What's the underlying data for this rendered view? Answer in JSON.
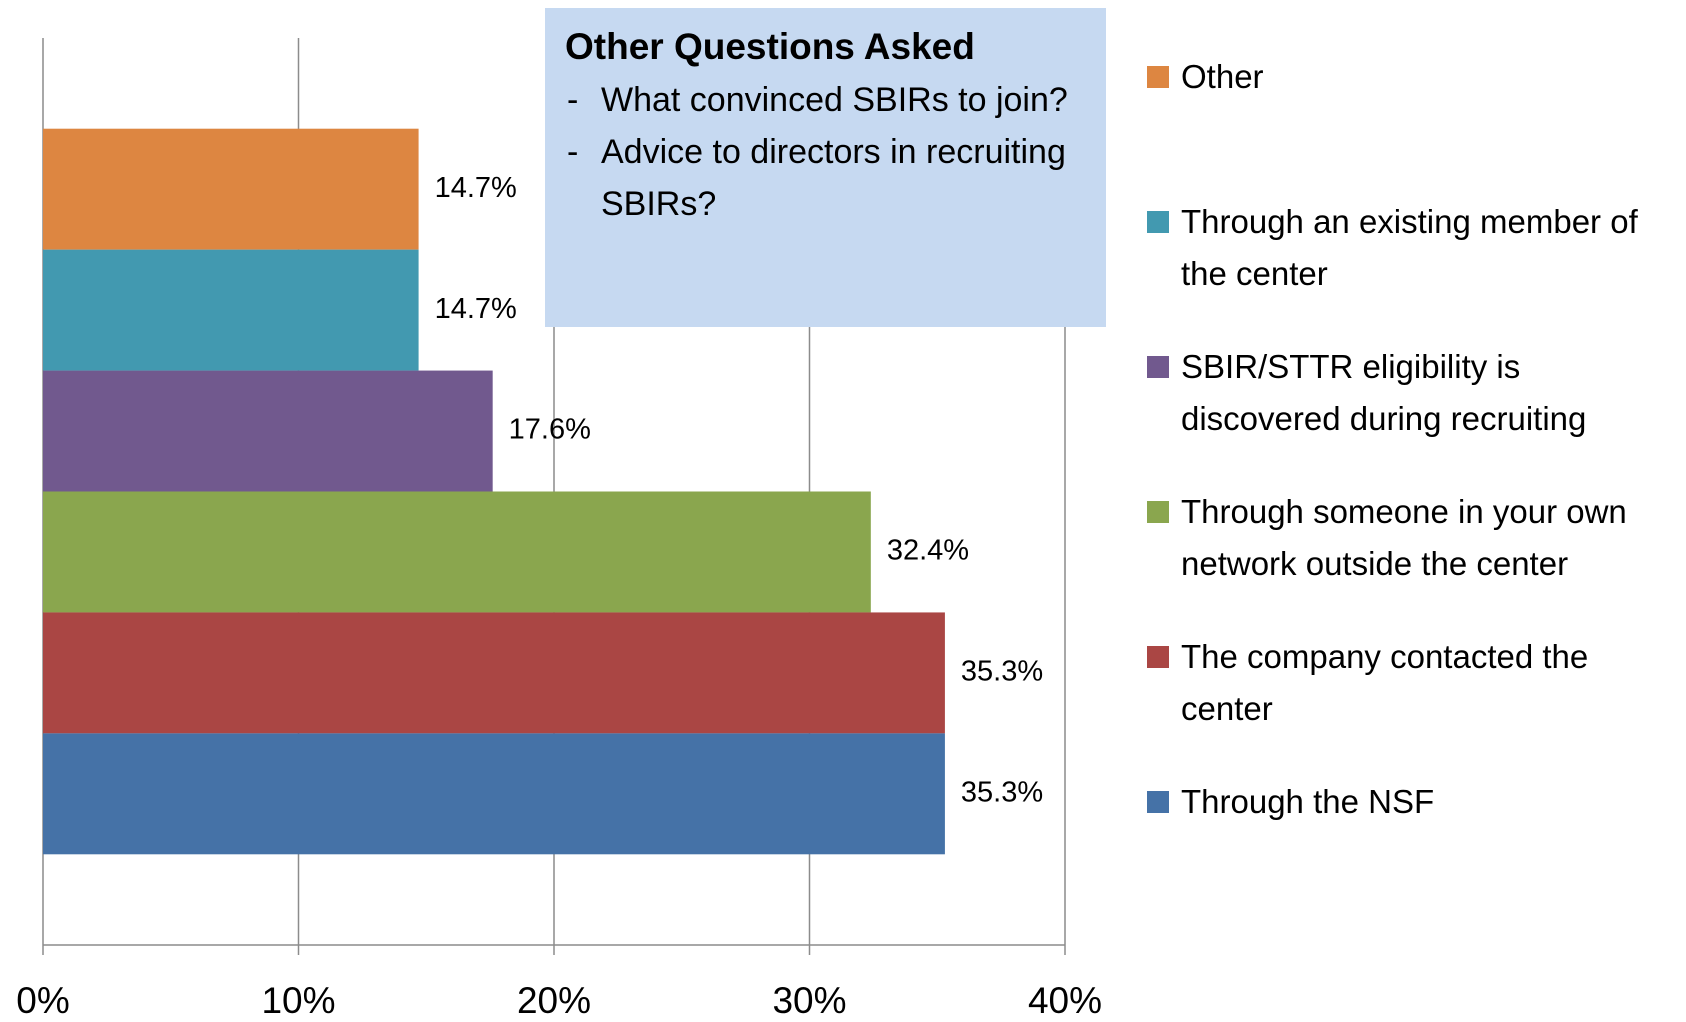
{
  "chart_data": {
    "type": "bar",
    "orientation": "horizontal",
    "categories": [
      null
    ],
    "series": [
      {
        "name": "Other",
        "color": "#dd8641",
        "values": [
          14.7
        ],
        "value_labels": [
          "14.7%"
        ]
      },
      {
        "name": "Through an existing member of the center",
        "color": "#4299b0",
        "values": [
          14.7
        ],
        "value_labels": [
          "14.7%"
        ]
      },
      {
        "name": "SBIR/STTR eligibility is discovered during recruiting",
        "color": "#71598e",
        "values": [
          17.6
        ],
        "value_labels": [
          "17.6%"
        ]
      },
      {
        "name": "Through someone in your own network outside the center",
        "color": "#8aa64e",
        "values": [
          32.4
        ],
        "value_labels": [
          "32.4%"
        ]
      },
      {
        "name": "The company contacted the center",
        "color": "#aa4644",
        "values": [
          35.3
        ],
        "value_labels": [
          "35.3%"
        ]
      },
      {
        "name": "Through the NSF",
        "color": "#4572a7",
        "values": [
          35.3
        ],
        "value_labels": [
          "35.3%"
        ]
      }
    ],
    "xlim": [
      0,
      40
    ],
    "xticks": [
      {
        "value": 0,
        "label": "0%"
      },
      {
        "value": 10,
        "label": "10%"
      },
      {
        "value": 20,
        "label": "20%"
      },
      {
        "value": 30,
        "label": "30%"
      },
      {
        "value": 40,
        "label": "40%"
      }
    ],
    "grid": true,
    "legend": "right",
    "annotation_title": "Other Questions Asked",
    "annotations": [
      "What convinced SBIRs to join?",
      "Advice to directors in recruiting SBIRs?"
    ]
  }
}
